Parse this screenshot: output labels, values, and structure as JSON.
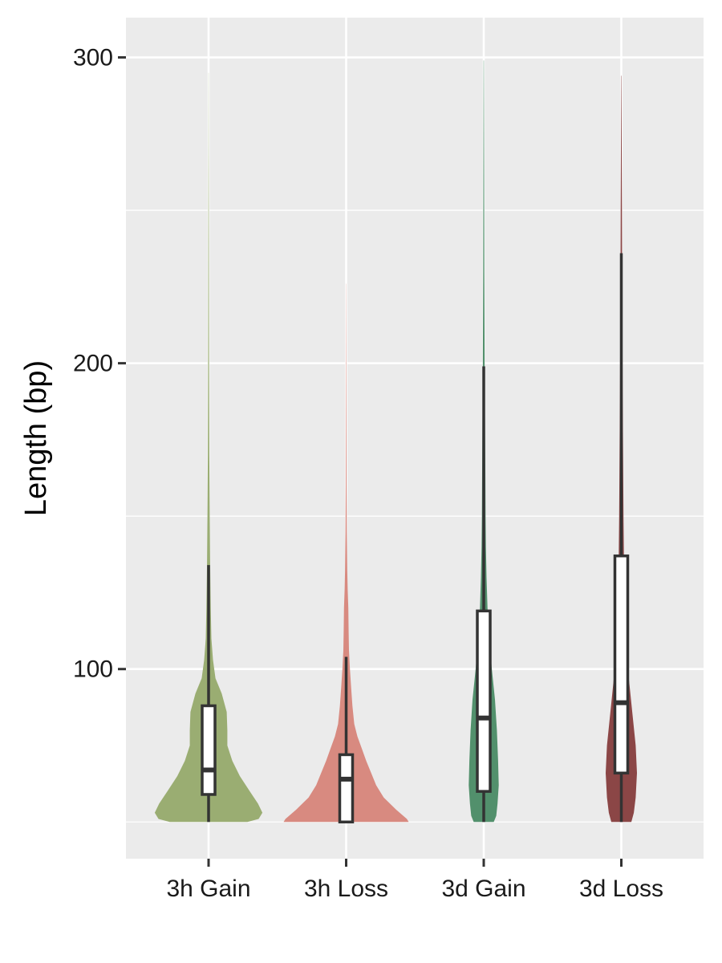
{
  "chart_data": {
    "type": "violin",
    "title": "",
    "xlabel": "",
    "ylabel": "Length (bp)",
    "ylim": [
      38,
      313
    ],
    "y_ticks": [
      100,
      200,
      300
    ],
    "y_minor_ticks": [
      50,
      150,
      250
    ],
    "grid": true,
    "legend": "none",
    "categories": [
      "3h Gain",
      "3h Loss",
      "3d Gain",
      "3d Loss"
    ],
    "colors": [
      "#9aad72",
      "#d88a80",
      "#52906c",
      "#8b4646"
    ],
    "series": [
      {
        "category": "3h Gain",
        "min": 50,
        "q1": 59,
        "median": 67,
        "q3": 88,
        "max": 134,
        "data_max": 295,
        "density": [
          [
            50,
            0.62
          ],
          [
            51,
            0.8
          ],
          [
            53,
            0.86
          ],
          [
            56,
            0.79
          ],
          [
            60,
            0.66
          ],
          [
            65,
            0.5
          ],
          [
            70,
            0.38
          ],
          [
            75,
            0.3
          ],
          [
            80,
            0.3
          ],
          [
            86,
            0.29
          ],
          [
            92,
            0.21
          ],
          [
            97,
            0.11
          ],
          [
            103,
            0.07
          ],
          [
            110,
            0.045
          ],
          [
            120,
            0.035
          ],
          [
            135,
            0.025
          ],
          [
            150,
            0.018
          ],
          [
            170,
            0.012
          ],
          [
            200,
            0.008
          ],
          [
            240,
            0.005
          ],
          [
            270,
            0.003
          ],
          [
            295,
            0.001
          ]
        ]
      },
      {
        "category": "3h Loss",
        "min": 50,
        "q1": 50,
        "median": 64,
        "q3": 72,
        "max": 104,
        "data_max": 226,
        "density": [
          [
            50,
            1.0
          ],
          [
            51,
            0.97
          ],
          [
            54,
            0.8
          ],
          [
            58,
            0.6
          ],
          [
            62,
            0.48
          ],
          [
            66,
            0.4
          ],
          [
            70,
            0.32
          ],
          [
            74,
            0.25
          ],
          [
            78,
            0.18
          ],
          [
            82,
            0.13
          ],
          [
            88,
            0.1
          ],
          [
            94,
            0.08
          ],
          [
            100,
            0.06
          ],
          [
            106,
            0.045
          ],
          [
            112,
            0.04
          ],
          [
            120,
            0.035
          ],
          [
            126,
            0.025
          ],
          [
            132,
            0.018
          ],
          [
            145,
            0.01
          ],
          [
            160,
            0.006
          ],
          [
            190,
            0.004
          ],
          [
            226,
            0.001
          ]
        ]
      },
      {
        "category": "3d Gain",
        "min": 50,
        "q1": 60,
        "median": 84,
        "q3": 119,
        "max": 199,
        "data_max": 299,
        "density": [
          [
            50,
            0.16
          ],
          [
            52,
            0.2
          ],
          [
            56,
            0.22
          ],
          [
            62,
            0.24
          ],
          [
            70,
            0.23
          ],
          [
            80,
            0.21
          ],
          [
            90,
            0.18
          ],
          [
            100,
            0.13
          ],
          [
            110,
            0.09
          ],
          [
            120,
            0.06
          ],
          [
            130,
            0.045
          ],
          [
            140,
            0.035
          ],
          [
            150,
            0.03
          ],
          [
            165,
            0.025
          ],
          [
            180,
            0.02
          ],
          [
            200,
            0.014
          ],
          [
            230,
            0.009
          ],
          [
            260,
            0.006
          ],
          [
            299,
            0.002
          ]
        ]
      },
      {
        "category": "3d Loss",
        "min": 50,
        "q1": 66,
        "median": 89,
        "q3": 137,
        "max": 236,
        "data_max": 294,
        "density": [
          [
            50,
            0.16
          ],
          [
            53,
            0.2
          ],
          [
            58,
            0.23
          ],
          [
            66,
            0.25
          ],
          [
            75,
            0.23
          ],
          [
            85,
            0.18
          ],
          [
            95,
            0.13
          ],
          [
            105,
            0.08
          ],
          [
            115,
            0.06
          ],
          [
            130,
            0.045
          ],
          [
            150,
            0.035
          ],
          [
            170,
            0.028
          ],
          [
            190,
            0.022
          ],
          [
            210,
            0.018
          ],
          [
            230,
            0.013
          ],
          [
            250,
            0.01
          ],
          [
            270,
            0.007
          ],
          [
            294,
            0.002
          ]
        ]
      }
    ]
  }
}
